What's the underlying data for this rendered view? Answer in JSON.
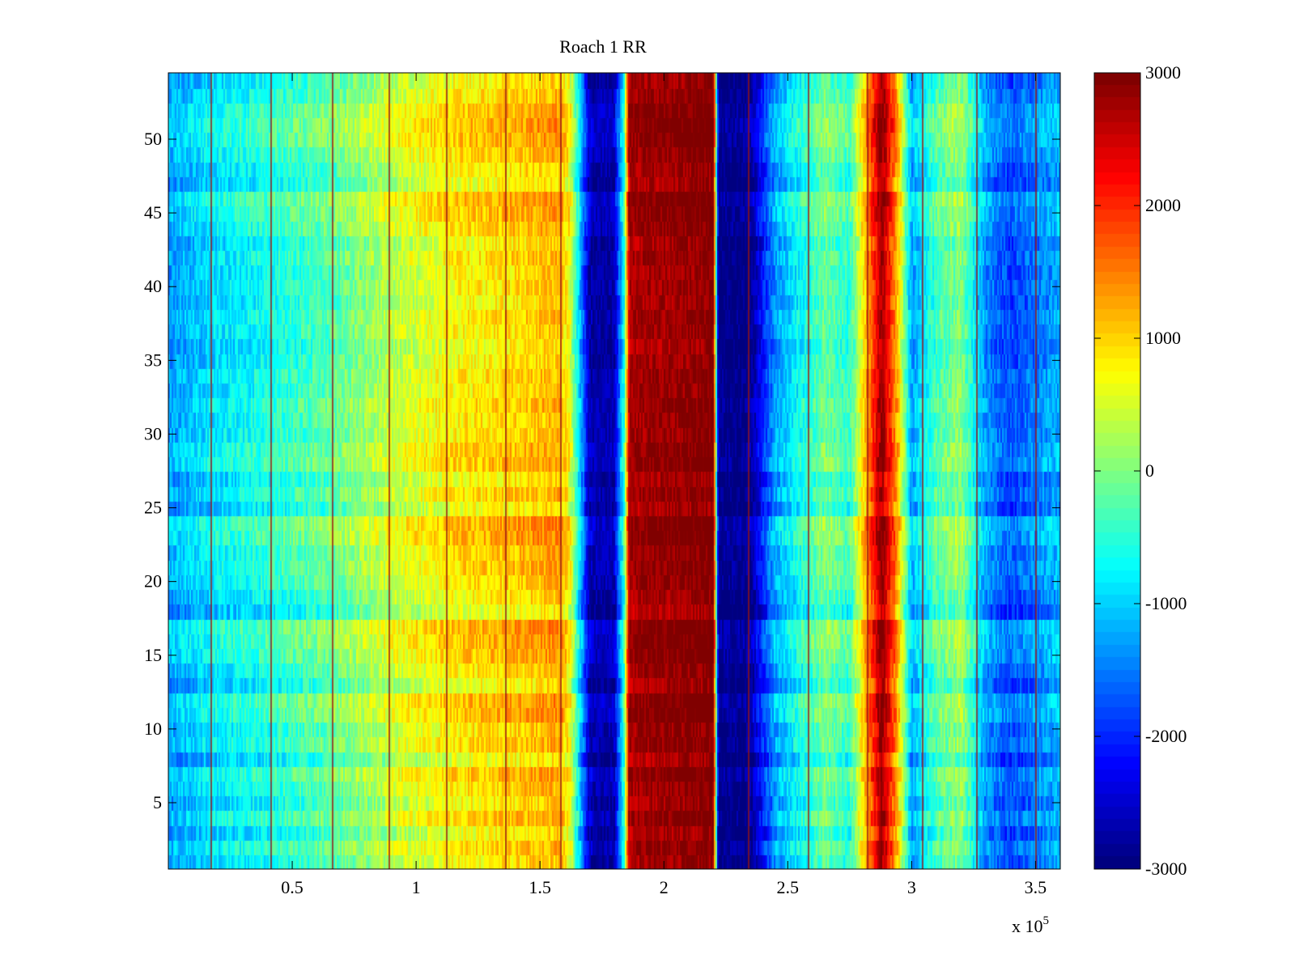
{
  "chart_data": {
    "type": "heatmap",
    "title": "Roach 1 RR",
    "xlabel": "",
    "ylabel": "",
    "x_multiplier_label": "x 10",
    "x_multiplier_exponent": "5",
    "xlim": [
      0,
      3.6
    ],
    "ylim": [
      0.5,
      54.5
    ],
    "x_ticks": [
      0.5,
      1,
      1.5,
      2,
      2.5,
      3,
      3.5
    ],
    "x_tick_labels": [
      "0.5",
      "1",
      "1.5",
      "2",
      "2.5",
      "3",
      "3.5"
    ],
    "y_ticks": [
      5,
      10,
      15,
      20,
      25,
      30,
      35,
      40,
      45,
      50
    ],
    "y_tick_labels": [
      "5",
      "10",
      "15",
      "20",
      "25",
      "30",
      "35",
      "40",
      "45",
      "50"
    ],
    "colorbar": {
      "colormap": "jet",
      "range": [
        -3000,
        3000
      ],
      "ticks": [
        3000,
        2000,
        1000,
        0,
        -1000,
        -2000,
        -3000
      ],
      "tick_labels": [
        "3000",
        "2000",
        "1000",
        "0",
        "-1000",
        "-2000",
        "-3000"
      ]
    },
    "rows": 54,
    "column_profile": {
      "x": [
        0.0,
        0.17,
        0.4,
        0.66,
        0.9,
        1.15,
        1.4,
        1.58,
        1.62,
        1.7,
        1.8,
        1.84,
        1.86,
        2.2,
        2.22,
        2.35,
        2.45,
        2.55,
        2.65,
        2.75,
        2.82,
        2.88,
        2.94,
        3.0,
        3.1,
        3.2,
        3.3,
        3.4,
        3.6
      ],
      "value": [
        -1400,
        -1000,
        -700,
        -300,
        300,
        700,
        900,
        1100,
        600,
        -2800,
        -2800,
        -600,
        2700,
        2900,
        -3000,
        -3000,
        -1400,
        -800,
        -200,
        -600,
        1200,
        2800,
        1200,
        -1400,
        -400,
        0,
        -1500,
        -1900,
        -1300
      ]
    },
    "row_offsets": [
      0,
      200,
      -100,
      250,
      -50,
      150,
      300,
      -150,
      200,
      100,
      350,
      400,
      -100,
      100,
      300,
      400,
      450,
      -200,
      0,
      150,
      250,
      200,
      400,
      450,
      -100,
      150,
      -50,
      300,
      250,
      100,
      100,
      200,
      50,
      100,
      0,
      -100,
      50,
      100,
      -50,
      50,
      0,
      100,
      -50,
      200,
      300,
      400,
      -100,
      0,
      200,
      350,
      400,
      300,
      100,
      0
    ],
    "vertical_lines_x": [
      0.17,
      0.41,
      0.66,
      0.89,
      1.12,
      1.36,
      1.58,
      2.34,
      2.58,
      2.82,
      3.04,
      3.26,
      3.5
    ]
  }
}
